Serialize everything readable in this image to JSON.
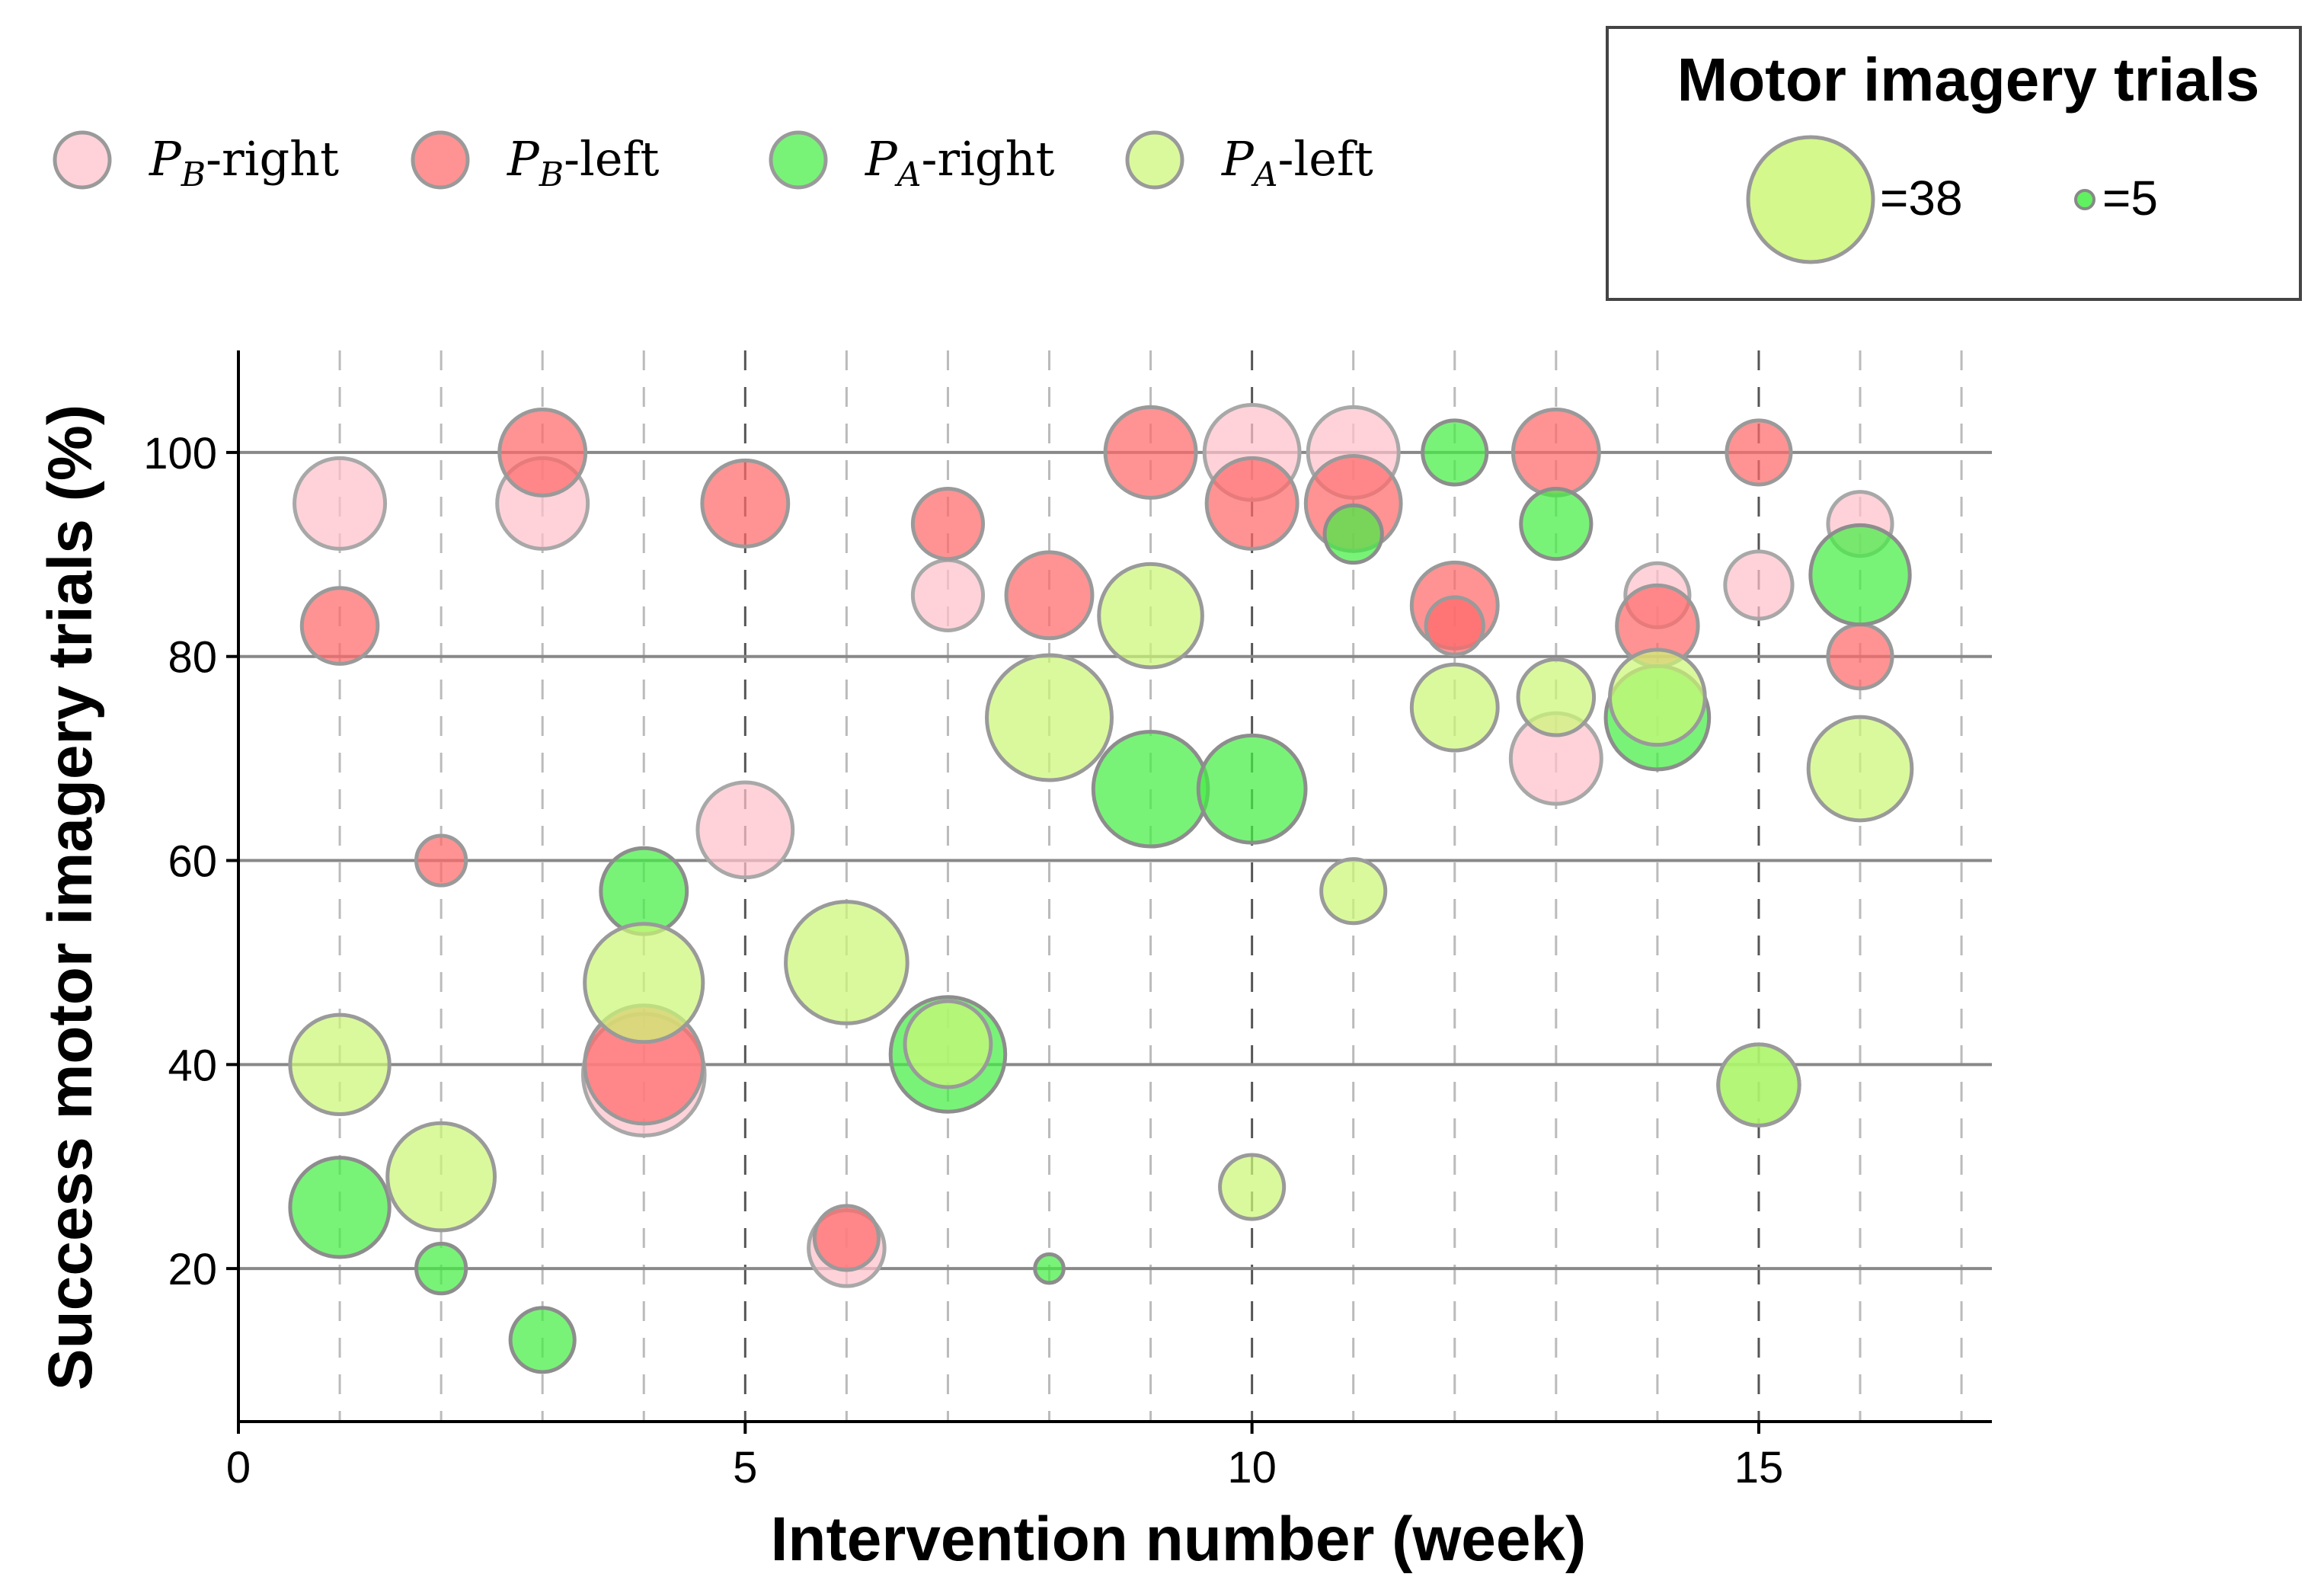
{
  "chart_data": {
    "type": "scatter",
    "subtype": "bubble",
    "xlabel": "Intervention number (week)",
    "ylabel": "Success motor imagery trials (%)",
    "xlim": [
      0,
      17.3
    ],
    "ylim": [
      5,
      110
    ],
    "xticks": [
      0,
      5,
      10,
      15
    ],
    "yticks": [
      20,
      40,
      60,
      80,
      100
    ],
    "grid": "horizontal solid at y ticks; vertical dashed at every integer x",
    "legend": {
      "placement": "top-left",
      "entries": [
        {
          "series": "PB-right",
          "base": "P",
          "sub": "B",
          "suffix": "-right"
        },
        {
          "series": "PB-left",
          "base": "P",
          "sub": "B",
          "suffix": "-left"
        },
        {
          "series": "PA-right",
          "base": "P",
          "sub": "A",
          "suffix": "-right"
        },
        {
          "series": "PA-left",
          "base": "P",
          "sub": "A",
          "suffix": "-left"
        }
      ]
    },
    "size_legend": {
      "placement": "top-right",
      "title": "Motor imagery trials",
      "large": {
        "value": 38,
        "label": "=38",
        "series": "PA-left"
      },
      "small": {
        "value": 5,
        "label": "=5",
        "series": "PA-right"
      }
    },
    "series": [
      {
        "name": "PB-right",
        "color": "#ffc0cb",
        "points": [
          {
            "x": 1,
            "y": 95,
            "trials": 20
          },
          {
            "x": 3,
            "y": 95,
            "trials": 20
          },
          {
            "x": 4,
            "y": 39,
            "trials": 36
          },
          {
            "x": 5,
            "y": 63,
            "trials": 22
          },
          {
            "x": 6,
            "y": 22,
            "trials": 14
          },
          {
            "x": 7,
            "y": 86,
            "trials": 12
          },
          {
            "x": 10,
            "y": 100,
            "trials": 22
          },
          {
            "x": 11,
            "y": 100,
            "trials": 20
          },
          {
            "x": 13,
            "y": 70,
            "trials": 20
          },
          {
            "x": 14,
            "y": 86,
            "trials": 10
          },
          {
            "x": 15,
            "y": 87,
            "trials": 11
          },
          {
            "x": 16,
            "y": 93,
            "trials": 10
          }
        ]
      },
      {
        "name": "PB-left",
        "color": "#ff6a6a",
        "points": [
          {
            "x": 1,
            "y": 83,
            "trials": 14
          },
          {
            "x": 2,
            "y": 60,
            "trials": 6
          },
          {
            "x": 3,
            "y": 100,
            "trials": 18
          },
          {
            "x": 4,
            "y": 40,
            "trials": 34
          },
          {
            "x": 5,
            "y": 95,
            "trials": 18
          },
          {
            "x": 6,
            "y": 23,
            "trials": 10
          },
          {
            "x": 7,
            "y": 93,
            "trials": 12
          },
          {
            "x": 8,
            "y": 86,
            "trials": 18
          },
          {
            "x": 9,
            "y": 100,
            "trials": 20
          },
          {
            "x": 10,
            "y": 95,
            "trials": 20
          },
          {
            "x": 11,
            "y": 95,
            "trials": 22
          },
          {
            "x": 12,
            "y": 85,
            "trials": 18
          },
          {
            "x": 12,
            "y": 83,
            "trials": 8
          },
          {
            "x": 13,
            "y": 100,
            "trials": 18
          },
          {
            "x": 14,
            "y": 83,
            "trials": 16
          },
          {
            "x": 15,
            "y": 100,
            "trials": 10
          },
          {
            "x": 16,
            "y": 80,
            "trials": 10
          }
        ]
      },
      {
        "name": "PA-right",
        "color": "#44ee44",
        "points": [
          {
            "x": 1,
            "y": 26,
            "trials": 24
          },
          {
            "x": 2,
            "y": 20,
            "trials": 6
          },
          {
            "x": 3,
            "y": 13,
            "trials": 10
          },
          {
            "x": 4,
            "y": 57,
            "trials": 18
          },
          {
            "x": 7,
            "y": 41,
            "trials": 32
          },
          {
            "x": 8,
            "y": 20,
            "trials": 2
          },
          {
            "x": 9,
            "y": 67,
            "trials": 32
          },
          {
            "x": 10,
            "y": 67,
            "trials": 28
          },
          {
            "x": 11,
            "y": 92,
            "trials": 8
          },
          {
            "x": 12,
            "y": 100,
            "trials": 10
          },
          {
            "x": 13,
            "y": 93,
            "trials": 12
          },
          {
            "x": 14,
            "y": 74,
            "trials": 26
          },
          {
            "x": 15,
            "y": 38,
            "trials": 16
          },
          {
            "x": 16,
            "y": 88,
            "trials": 24
          }
        ]
      },
      {
        "name": "PA-left",
        "color": "#ccf777",
        "points": [
          {
            "x": 1,
            "y": 40,
            "trials": 24
          },
          {
            "x": 2,
            "y": 29,
            "trials": 28
          },
          {
            "x": 4,
            "y": 48,
            "trials": 34
          },
          {
            "x": 6,
            "y": 50,
            "trials": 36
          },
          {
            "x": 7,
            "y": 42,
            "trials": 18
          },
          {
            "x": 8,
            "y": 74,
            "trials": 38
          },
          {
            "x": 9,
            "y": 84,
            "trials": 26
          },
          {
            "x": 10,
            "y": 28,
            "trials": 10
          },
          {
            "x": 11,
            "y": 57,
            "trials": 10
          },
          {
            "x": 12,
            "y": 75,
            "trials": 18
          },
          {
            "x": 13,
            "y": 76,
            "trials": 14
          },
          {
            "x": 14,
            "y": 76,
            "trials": 22
          },
          {
            "x": 15,
            "y": 38,
            "trials": 16
          },
          {
            "x": 16,
            "y": 69,
            "trials": 26
          }
        ]
      }
    ]
  }
}
